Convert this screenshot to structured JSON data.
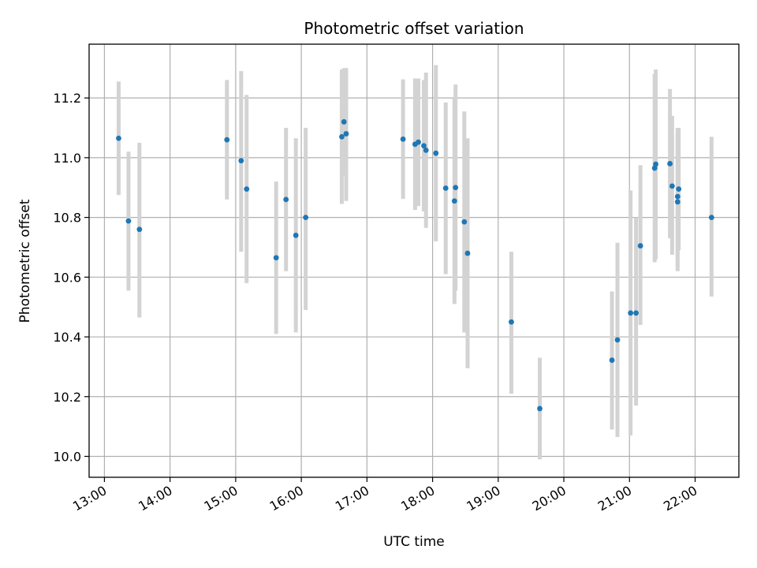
{
  "chart_data": {
    "type": "scatter",
    "title": "Photometric offset variation",
    "xlabel": "UTC time",
    "ylabel": "Photometric offset",
    "xlim": [
      "12:46",
      "22:40"
    ],
    "ylim": [
      9.93,
      11.38
    ],
    "x_ticks": [
      "13:00",
      "14:00",
      "15:00",
      "16:00",
      "17:00",
      "18:00",
      "19:00",
      "20:00",
      "21:00",
      "22:00"
    ],
    "y_ticks": [
      "10.0",
      "10.2",
      "10.4",
      "10.6",
      "10.8",
      "11.0",
      "11.2"
    ],
    "grid": true,
    "legend": "none",
    "point_color": "#1f77b4",
    "errorbar_color": "#d3d3d3",
    "points": [
      {
        "x": "13:13",
        "y": 11.065,
        "low": 10.875,
        "high": 11.255
      },
      {
        "x": "13:22",
        "y": 10.788,
        "low": 10.555,
        "high": 11.02
      },
      {
        "x": "13:32",
        "y": 10.76,
        "low": 10.465,
        "high": 11.05
      },
      {
        "x": "14:52",
        "y": 11.06,
        "low": 10.86,
        "high": 11.26
      },
      {
        "x": "15:05",
        "y": 10.99,
        "low": 10.685,
        "high": 11.29
      },
      {
        "x": "15:10",
        "y": 10.895,
        "low": 10.58,
        "high": 11.21
      },
      {
        "x": "15:37",
        "y": 10.665,
        "low": 10.41,
        "high": 10.92
      },
      {
        "x": "15:46",
        "y": 10.86,
        "low": 10.62,
        "high": 11.1
      },
      {
        "x": "15:55",
        "y": 10.74,
        "low": 10.415,
        "high": 11.065
      },
      {
        "x": "16:04",
        "y": 10.8,
        "low": 10.49,
        "high": 11.1
      },
      {
        "x": "16:37",
        "y": 11.07,
        "low": 10.845,
        "high": 11.295
      },
      {
        "x": "16:39",
        "y": 11.12,
        "low": 10.94,
        "high": 11.3
      },
      {
        "x": "16:41",
        "y": 11.08,
        "low": 10.855,
        "high": 11.3
      },
      {
        "x": "17:33",
        "y": 11.062,
        "low": 10.862,
        "high": 11.262
      },
      {
        "x": "17:44",
        "y": 11.045,
        "low": 10.825,
        "high": 11.265
      },
      {
        "x": "17:47",
        "y": 11.052,
        "low": 10.838,
        "high": 11.265
      },
      {
        "x": "17:52",
        "y": 11.04,
        "low": 10.82,
        "high": 11.26
      },
      {
        "x": "17:54",
        "y": 11.025,
        "low": 10.765,
        "high": 11.285
      },
      {
        "x": "18:03",
        "y": 11.015,
        "low": 10.72,
        "high": 11.31
      },
      {
        "x": "18:12",
        "y": 10.898,
        "low": 10.61,
        "high": 11.185
      },
      {
        "x": "18:20",
        "y": 10.855,
        "low": 10.51,
        "high": 11.2
      },
      {
        "x": "18:21",
        "y": 10.9,
        "low": 10.555,
        "high": 11.245
      },
      {
        "x": "18:29",
        "y": 10.785,
        "low": 10.415,
        "high": 11.155
      },
      {
        "x": "18:32",
        "y": 10.68,
        "low": 10.295,
        "high": 11.065
      },
      {
        "x": "19:12",
        "y": 10.45,
        "low": 10.21,
        "high": 10.685
      },
      {
        "x": "19:38",
        "y": 10.16,
        "low": 9.99,
        "high": 10.33
      },
      {
        "x": "20:44",
        "y": 10.322,
        "low": 10.09,
        "high": 10.552
      },
      {
        "x": "20:49",
        "y": 10.39,
        "low": 10.065,
        "high": 10.715
      },
      {
        "x": "21:01",
        "y": 10.48,
        "low": 10.07,
        "high": 10.89
      },
      {
        "x": "21:06",
        "y": 10.48,
        "low": 10.17,
        "high": 10.8
      },
      {
        "x": "21:10",
        "y": 10.705,
        "low": 10.44,
        "high": 10.975
      },
      {
        "x": "21:23",
        "y": 10.965,
        "low": 10.65,
        "high": 11.28
      },
      {
        "x": "21:24",
        "y": 10.978,
        "low": 10.66,
        "high": 11.295
      },
      {
        "x": "21:37",
        "y": 10.98,
        "low": 10.73,
        "high": 11.23
      },
      {
        "x": "21:39",
        "y": 10.905,
        "low": 10.675,
        "high": 11.14
      },
      {
        "x": "21:44",
        "y": 10.852,
        "low": 10.62,
        "high": 11.08
      },
      {
        "x": "21:44",
        "y": 10.87,
        "low": 10.635,
        "high": 11.1
      },
      {
        "x": "21:45",
        "y": 10.895,
        "low": 10.69,
        "high": 11.1
      },
      {
        "x": "22:15",
        "y": 10.8,
        "low": 10.535,
        "high": 11.07
      }
    ]
  }
}
